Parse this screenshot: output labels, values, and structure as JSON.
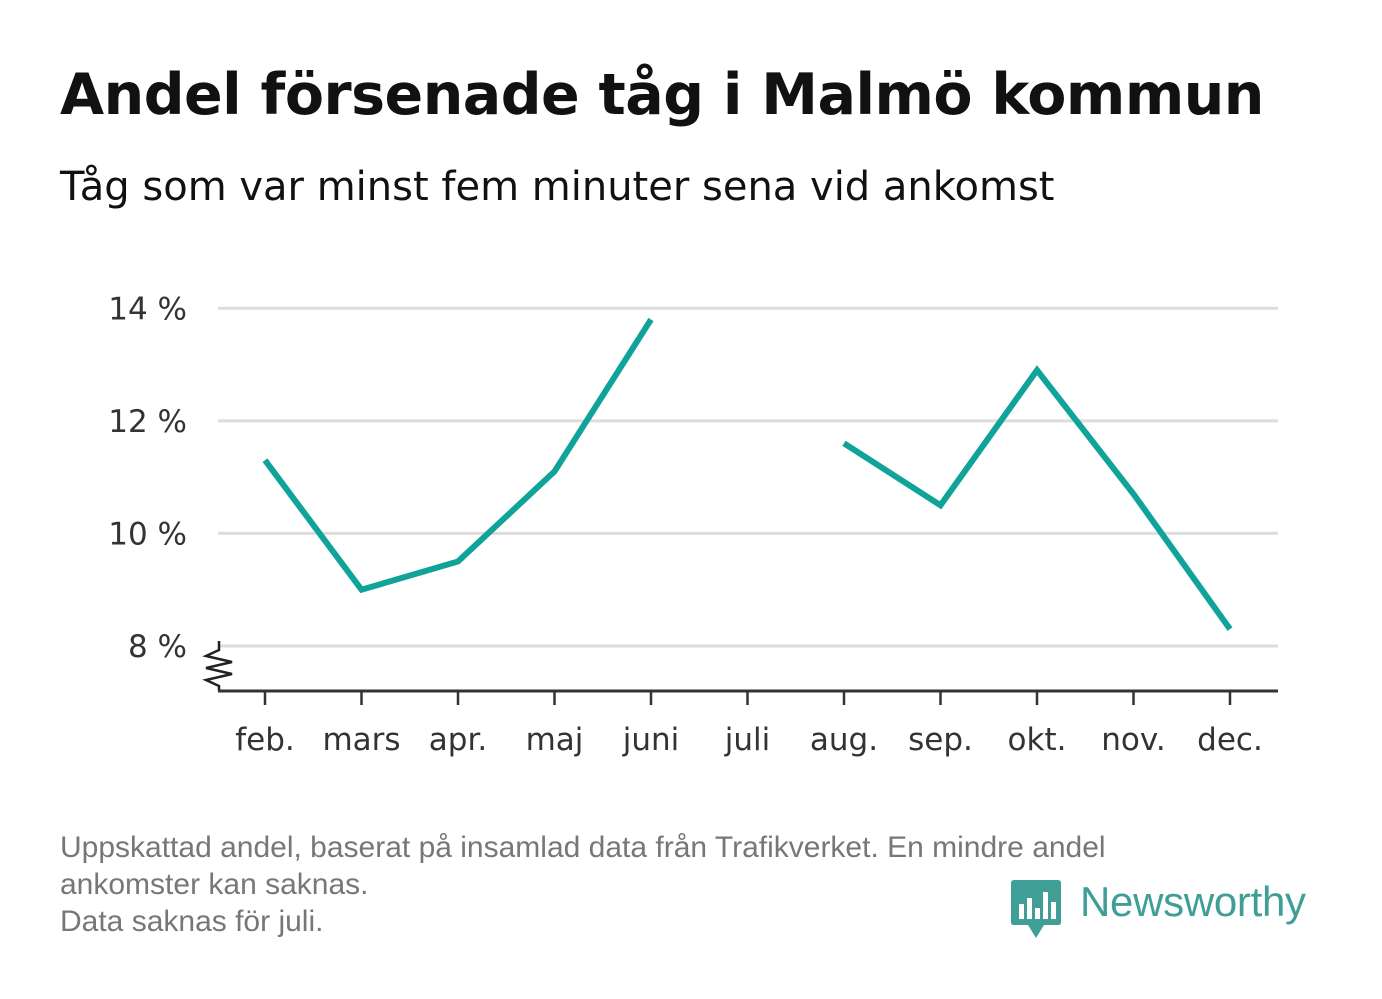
{
  "header": {
    "title": "Andel försenade tåg i Malmö kommun",
    "subtitle": "Tåg som var minst fem minuter sena vid ankomst"
  },
  "footnote": {
    "line1": "Uppskattad andel, baserat på insamlad data från Trafikverket. En mindre andel",
    "line2": "ankomster kan saknas.",
    "line3": "Data saknas för juli."
  },
  "brand": {
    "name": "Newsworthy",
    "icon": "newsworthy-logo-icon",
    "color": "#3f9e96"
  },
  "chart_data": {
    "type": "line",
    "title": "Andel försenade tåg i Malmö kommun",
    "subtitle": "Tåg som var minst fem minuter sena vid ankomst",
    "xlabel": "",
    "ylabel": "",
    "categories": [
      "feb.",
      "mars",
      "apr.",
      "maj",
      "juni",
      "juli",
      "aug.",
      "sep.",
      "okt.",
      "nov.",
      "dec."
    ],
    "series": [
      {
        "values": [
          11.3,
          9.0,
          9.5,
          11.1,
          13.8,
          null,
          11.6,
          10.5,
          12.9,
          10.7,
          8.3
        ],
        "color": "#0fa39a"
      }
    ],
    "yticks": [
      8,
      10,
      12,
      14
    ],
    "ytick_labels": [
      "8 %",
      "10 %",
      "12 %",
      "14 %"
    ],
    "ylim": [
      7.2,
      14.2
    ],
    "axis_break": true,
    "grid": true,
    "legend": "none"
  }
}
